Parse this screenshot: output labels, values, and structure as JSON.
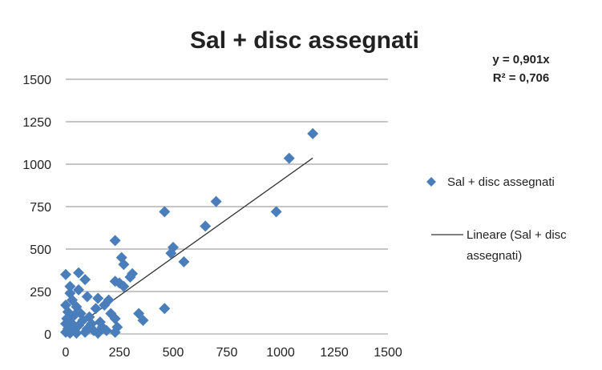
{
  "chart_data": {
    "type": "scatter",
    "title": "Sal + disc assegnati",
    "xlabel": "",
    "ylabel": "",
    "xlim": [
      0,
      1500
    ],
    "ylim": [
      0,
      1500
    ],
    "xticks": [
      "0",
      "250",
      "500",
      "750",
      "1000",
      "1250",
      "1500"
    ],
    "yticks": [
      "0",
      "250",
      "500",
      "750",
      "1000",
      "1250",
      "1500"
    ],
    "grid": "horizontal",
    "legend_position": "right",
    "marker_color": "#4A7EBB",
    "trend_color": "#333333",
    "trendline": {
      "slope": 0.901,
      "x_range": [
        0,
        1150
      ]
    },
    "equation": "y = 0,901x",
    "r_squared": "R² = 0,706",
    "series": [
      {
        "name": "Sal + disc assegnati",
        "points": [
          [
            1150,
            1180
          ],
          [
            1040,
            1035
          ],
          [
            700,
            780
          ],
          [
            980,
            720
          ],
          [
            460,
            720
          ],
          [
            650,
            635
          ],
          [
            500,
            510
          ],
          [
            490,
            475
          ],
          [
            550,
            425
          ],
          [
            230,
            550
          ],
          [
            260,
            450
          ],
          [
            270,
            410
          ],
          [
            310,
            355
          ],
          [
            300,
            335
          ],
          [
            250,
            300
          ],
          [
            230,
            310
          ],
          [
            270,
            280
          ],
          [
            0,
            350
          ],
          [
            20,
            280
          ],
          [
            60,
            360
          ],
          [
            90,
            320
          ],
          [
            340,
            120
          ],
          [
            360,
            80
          ],
          [
            460,
            150
          ],
          [
            200,
            200
          ],
          [
            180,
            170
          ],
          [
            150,
            210
          ],
          [
            210,
            120
          ],
          [
            230,
            90
          ],
          [
            240,
            40
          ],
          [
            230,
            10
          ],
          [
            190,
            20
          ],
          [
            160,
            70
          ],
          [
            170,
            40
          ],
          [
            120,
            60
          ],
          [
            100,
            30
          ],
          [
            80,
            80
          ],
          [
            60,
            50
          ],
          [
            40,
            20
          ],
          [
            20,
            5
          ],
          [
            10,
            30
          ],
          [
            0,
            10
          ],
          [
            0,
            60
          ],
          [
            0,
            170
          ],
          [
            10,
            130
          ],
          [
            30,
            200
          ],
          [
            50,
            160
          ],
          [
            40,
            110
          ],
          [
            70,
            120
          ],
          [
            30,
            60
          ],
          [
            90,
            10
          ],
          [
            110,
            100
          ],
          [
            130,
            20
          ],
          [
            140,
            150
          ],
          [
            20,
            240
          ],
          [
            60,
            260
          ],
          [
            100,
            220
          ],
          [
            5,
            90
          ],
          [
            50,
            5
          ],
          [
            150,
            5
          ]
        ]
      },
      {
        "name": "Lineare (Sal + disc assegnati)",
        "type": "line"
      }
    ]
  }
}
